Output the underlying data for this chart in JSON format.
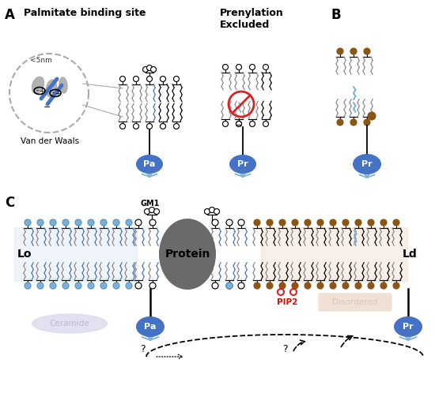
{
  "panel_A_label": "A",
  "panel_B_label": "B",
  "panel_C_label": "C",
  "panel_A_title": "Palmitate binding site",
  "panel_A2_title": "Prenylation\nExcluded",
  "vdw_label": "Van der Waals",
  "dist_label": "<5nm",
  "Pa_label": "Pa",
  "Pr_label": "Pr",
  "Lo_label": "Lo",
  "Ld_label": "Ld",
  "GM1_label": "GM1",
  "Protein_label": "Protein",
  "Ceramide_label": "Ceramide",
  "PIP2_label": "PIP2",
  "Disordered_label": "Disordered",
  "blue_color": "#4472C4",
  "blue_light": "#6FA8DC",
  "gray_color": "#888888",
  "gray_dark": "#606060",
  "gray_fill": "#AAAAAA",
  "brown_color": "#8B5513",
  "light_blue_tail": "#7EB4D8",
  "red_color": "#DD2222",
  "bg_color": "#FFFFFF",
  "lavender": "#DCDCF0",
  "peach": "#F0DDD0"
}
